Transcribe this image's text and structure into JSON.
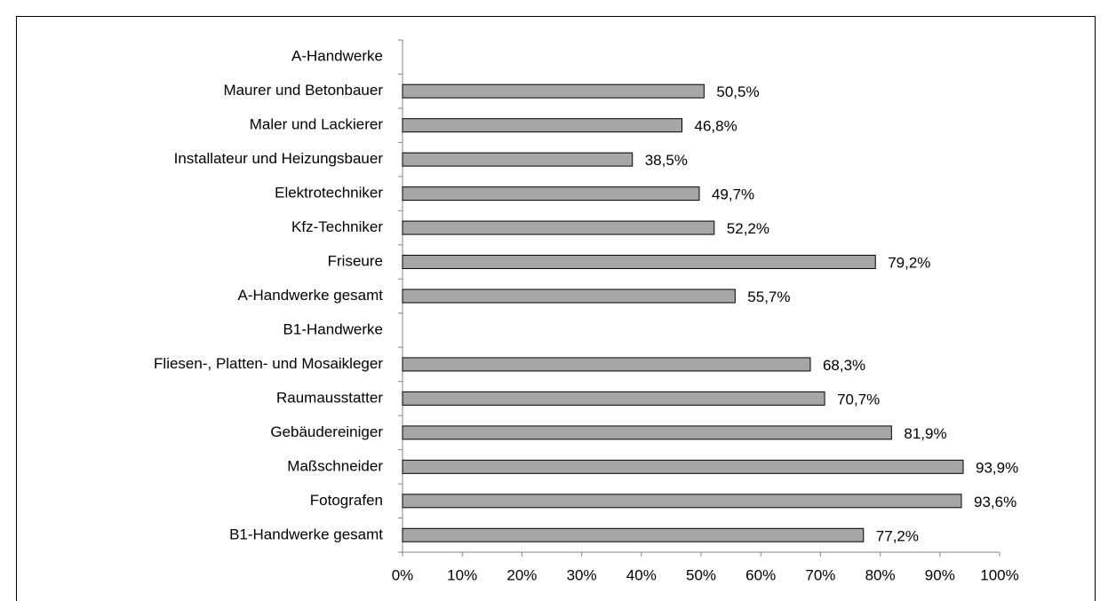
{
  "chart_data": {
    "type": "bar",
    "orientation": "horizontal",
    "categories": [
      "A-Handwerke",
      "Maurer und Betonbauer",
      "Maler und Lackierer",
      "Installateur und Heizungsbauer",
      "Elektrotechniker",
      "Kfz-Techniker",
      "Friseure",
      "A-Handwerke gesamt",
      "B1-Handwerke",
      "Fliesen-, Platten- und Mosaikleger",
      "Raumausstatter",
      "Gebäudereiniger",
      "Maßschneider",
      "Fotografen",
      "B1-Handwerke gesamt"
    ],
    "values": [
      null,
      50.5,
      46.8,
      38.5,
      49.7,
      52.2,
      79.2,
      55.7,
      null,
      68.3,
      70.7,
      81.9,
      93.9,
      93.6,
      77.2
    ],
    "value_labels": [
      null,
      "50,5%",
      "46,8%",
      "38,5%",
      "49,7%",
      "52,2%",
      "79,2%",
      "55,7%",
      null,
      "68,3%",
      "70,7%",
      "81,9%",
      "93,9%",
      "93,6%",
      "77,2%"
    ],
    "color": "#a6a6a6",
    "xlim": [
      0,
      100
    ],
    "xticks": [
      {
        "value": 0,
        "label": "0%"
      },
      {
        "value": 10,
        "label": "10%"
      },
      {
        "value": 20,
        "label": "20%"
      },
      {
        "value": 30,
        "label": "30%"
      },
      {
        "value": 40,
        "label": "40%"
      },
      {
        "value": 50,
        "label": "50%"
      },
      {
        "value": 60,
        "label": "60%"
      },
      {
        "value": 70,
        "label": "70%"
      },
      {
        "value": 80,
        "label": "80%"
      },
      {
        "value": 90,
        "label": "90%"
      },
      {
        "value": 100,
        "label": "100%"
      }
    ],
    "grid": false
  }
}
